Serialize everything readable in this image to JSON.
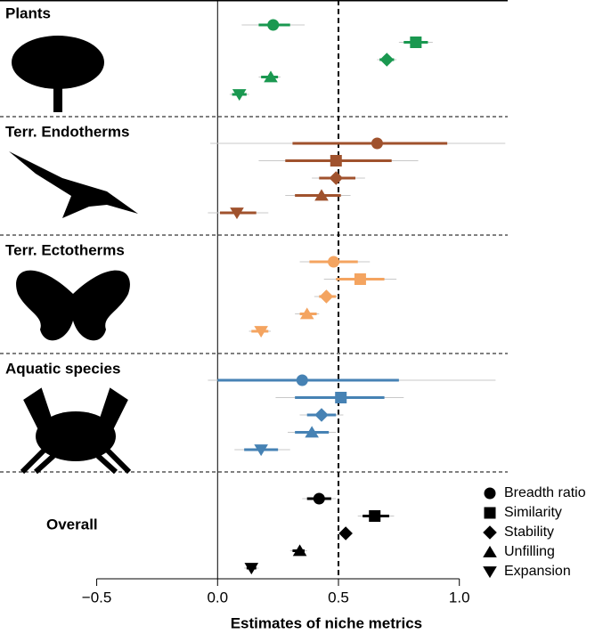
{
  "chart_data": {
    "type": "forest",
    "xlabel": "Estimates of niche metrics",
    "xlim": [
      -0.9,
      1.2
    ],
    "xticks": [
      {
        "value": -0.5,
        "label": "−0.5"
      },
      {
        "value": 0,
        "label": "0.0"
      },
      0.5,
      {
        "value": 1,
        "label": "1.0"
      }
    ],
    "ref_lines": [
      {
        "value": 0,
        "style": "solid"
      },
      {
        "value": 0.5,
        "style": "dashed"
      }
    ],
    "metrics": [
      "Breadth ratio",
      "Similarity",
      "Stability",
      "Unfilling",
      "Expansion"
    ],
    "markers": [
      "circle",
      "square",
      "diamond",
      "triangle",
      "triangle-down"
    ],
    "groups": [
      {
        "name": "Plants",
        "color": "#1a9850",
        "estimates": [
          0.23,
          0.82,
          0.7,
          0.22,
          0.09
        ],
        "ci_inner": [
          [
            0.17,
            0.3
          ],
          [
            0.77,
            0.87
          ],
          [
            0.67,
            0.73
          ],
          [
            0.18,
            0.25
          ],
          [
            0.06,
            0.12
          ]
        ],
        "ci_outer": [
          [
            0.1,
            0.36
          ],
          [
            0.75,
            0.89
          ],
          [
            0.66,
            0.74
          ],
          [
            0.17,
            0.26
          ],
          [
            0.05,
            0.13
          ]
        ]
      },
      {
        "name": "Terr. Endotherms",
        "color": "#a0522d",
        "estimates": [
          0.66,
          0.49,
          0.49,
          0.43,
          0.08
        ],
        "ci_inner": [
          [
            0.31,
            0.95
          ],
          [
            0.28,
            0.72
          ],
          [
            0.42,
            0.57
          ],
          [
            0.32,
            0.51
          ],
          [
            0.01,
            0.16
          ]
        ],
        "ci_outer": [
          [
            -0.03,
            1.19
          ],
          [
            0.17,
            0.83
          ],
          [
            0.39,
            0.61
          ],
          [
            0.28,
            0.55
          ],
          [
            -0.04,
            0.21
          ]
        ]
      },
      {
        "name": "Terr. Ectotherms",
        "color": "#f4a460",
        "estimates": [
          0.48,
          0.59,
          0.45,
          0.37,
          0.18
        ],
        "ci_inner": [
          [
            0.38,
            0.58
          ],
          [
            0.49,
            0.69
          ],
          [
            0.42,
            0.49
          ],
          [
            0.34,
            0.41
          ],
          [
            0.14,
            0.21
          ]
        ],
        "ci_outer": [
          [
            0.34,
            0.63
          ],
          [
            0.44,
            0.74
          ],
          [
            0.4,
            0.5
          ],
          [
            0.32,
            0.42
          ],
          [
            0.13,
            0.22
          ]
        ]
      },
      {
        "name": "Aquatic species",
        "color": "#4682b4",
        "estimates": [
          0.35,
          0.51,
          0.43,
          0.39,
          0.18
        ],
        "ci_inner": [
          [
            0.0,
            0.75
          ],
          [
            0.32,
            0.69
          ],
          [
            0.37,
            0.49
          ],
          [
            0.32,
            0.46
          ],
          [
            0.11,
            0.25
          ]
        ],
        "ci_outer": [
          [
            -0.04,
            1.15
          ],
          [
            0.24,
            0.77
          ],
          [
            0.34,
            0.52
          ],
          [
            0.29,
            0.49
          ],
          [
            0.07,
            0.3
          ]
        ]
      },
      {
        "name": "Overall",
        "color": "#000000",
        "estimates": [
          0.42,
          0.65,
          0.53,
          0.34,
          0.14
        ],
        "ci_inner": [
          [
            0.37,
            0.47
          ],
          [
            0.6,
            0.71
          ],
          [
            0.51,
            0.54
          ],
          [
            0.31,
            0.36
          ],
          [
            0.12,
            0.16
          ]
        ],
        "ci_outer": [
          [
            0.35,
            0.49
          ],
          [
            0.58,
            0.73
          ],
          [
            0.5,
            0.55
          ],
          [
            0.3,
            0.37
          ],
          [
            0.11,
            0.17
          ]
        ]
      }
    ]
  }
}
